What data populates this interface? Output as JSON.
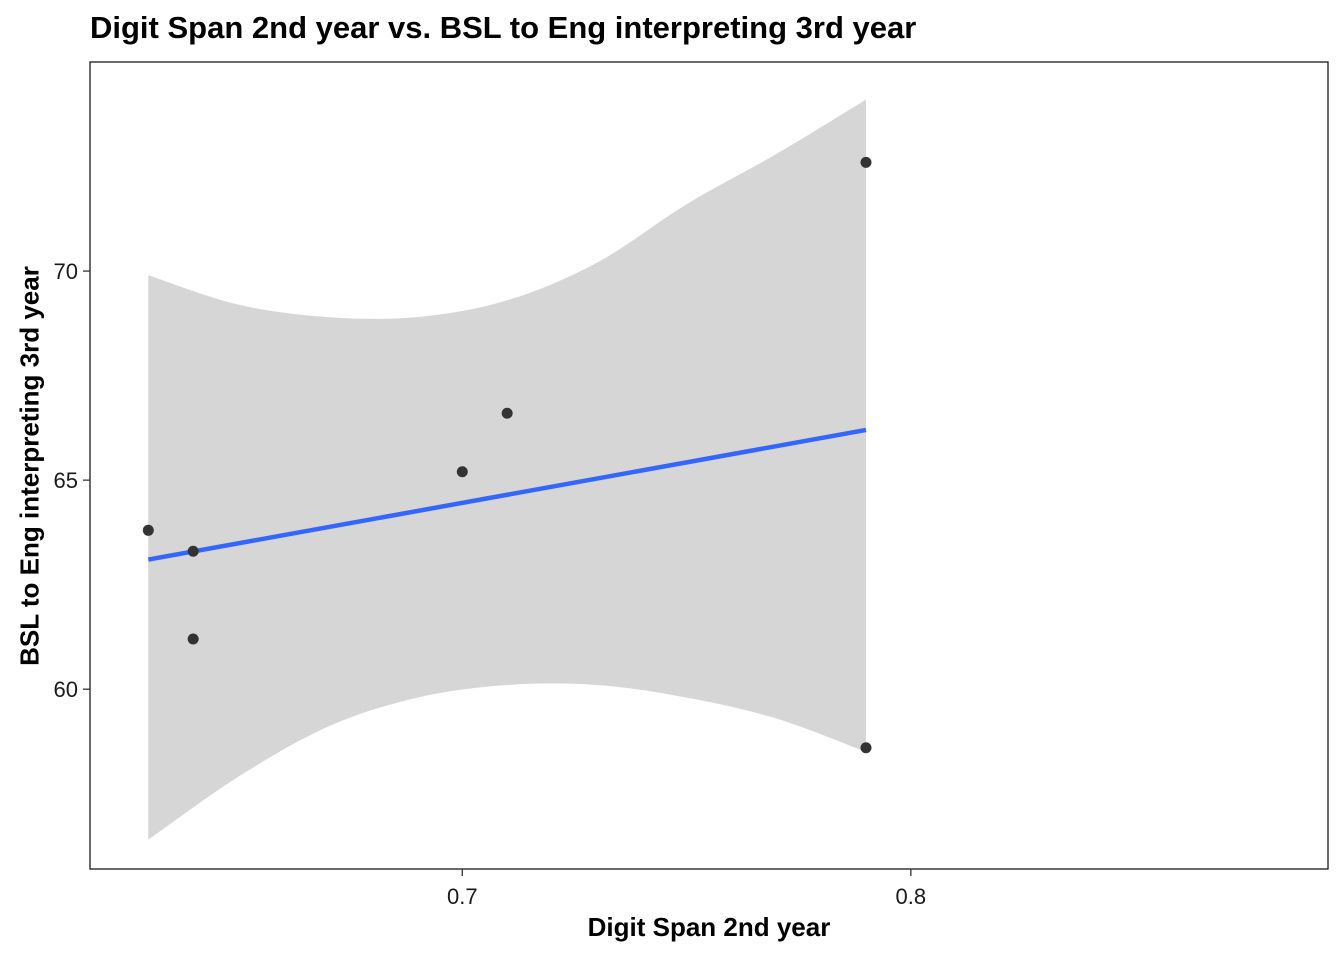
{
  "chart_data": {
    "type": "scatter",
    "title": "Digit Span 2nd year vs. BSL to Eng interpreting 3rd year",
    "xlabel": "Digit Span 2nd year",
    "ylabel": "BSL to Eng interpreting 3rd year",
    "xlim": [
      0.617,
      0.893
    ],
    "ylim": [
      55.7,
      75.0
    ],
    "x_ticks": [
      0.7,
      0.8
    ],
    "x_tick_labels": [
      "0.7",
      "0.8"
    ],
    "y_ticks": [
      60,
      65,
      70
    ],
    "y_tick_labels": [
      "60",
      "65",
      "70"
    ],
    "grid": false,
    "points": [
      {
        "x": 0.63,
        "y": 63.8
      },
      {
        "x": 0.64,
        "y": 63.3
      },
      {
        "x": 0.64,
        "y": 61.2
      },
      {
        "x": 0.7,
        "y": 65.2
      },
      {
        "x": 0.71,
        "y": 66.6
      },
      {
        "x": 0.79,
        "y": 72.6
      },
      {
        "x": 0.79,
        "y": 58.6
      }
    ],
    "fit_line": {
      "x": [
        0.63,
        0.79
      ],
      "y": [
        63.1,
        66.2
      ]
    },
    "confidence_band": {
      "x": [
        0.63,
        0.65,
        0.67,
        0.69,
        0.71,
        0.73,
        0.75,
        0.77,
        0.79
      ],
      "lower": [
        56.4,
        57.9,
        59.1,
        59.8,
        60.1,
        60.1,
        59.8,
        59.3,
        58.5
      ],
      "upper": [
        69.9,
        69.2,
        68.9,
        68.9,
        69.3,
        70.2,
        71.6,
        72.8,
        74.1
      ]
    },
    "colors": {
      "points": "#333333",
      "fit_line": "#3366ff",
      "band": "#d6d6d6"
    }
  }
}
